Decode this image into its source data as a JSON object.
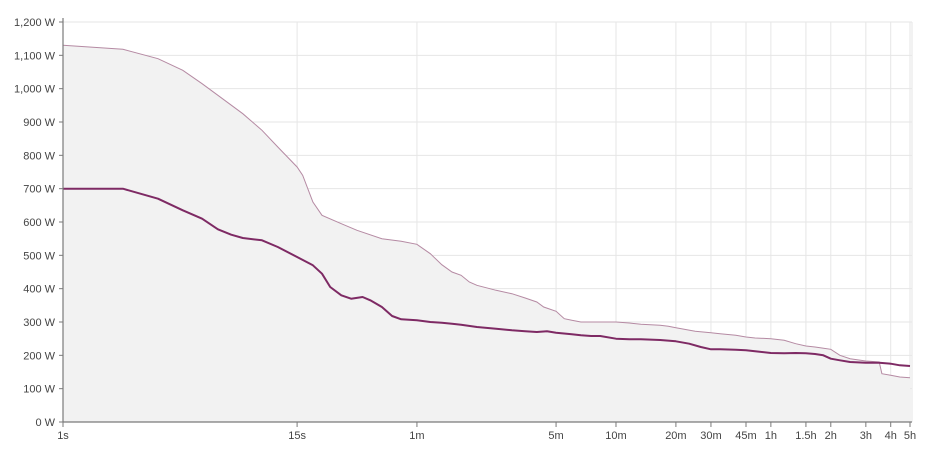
{
  "chart_data": {
    "type": "line",
    "title": "",
    "xlabel": "",
    "ylabel": "",
    "x_scale": "log",
    "x_unit": "seconds",
    "xlim": [
      1,
      18000
    ],
    "ylim": [
      0,
      1200
    ],
    "grid": true,
    "y_ticks": [
      {
        "value": 0,
        "label": "0 W"
      },
      {
        "value": 100,
        "label": "100 W"
      },
      {
        "value": 200,
        "label": "200 W"
      },
      {
        "value": 300,
        "label": "300 W"
      },
      {
        "value": 400,
        "label": "400 W"
      },
      {
        "value": 500,
        "label": "500 W"
      },
      {
        "value": 600,
        "label": "600 W"
      },
      {
        "value": 700,
        "label": "700 W"
      },
      {
        "value": 800,
        "label": "800 W"
      },
      {
        "value": 900,
        "label": "900 W"
      },
      {
        "value": 1000,
        "label": "1,000 W"
      },
      {
        "value": 1100,
        "label": "1,100 W"
      },
      {
        "value": 1200,
        "label": "1,200 W"
      }
    ],
    "x_ticks": [
      {
        "value": 1,
        "label": "1s"
      },
      {
        "value": 15,
        "label": "15s"
      },
      {
        "value": 60,
        "label": "1m"
      },
      {
        "value": 300,
        "label": "5m"
      },
      {
        "value": 600,
        "label": "10m"
      },
      {
        "value": 1200,
        "label": "20m"
      },
      {
        "value": 1800,
        "label": "30m"
      },
      {
        "value": 2700,
        "label": "45m"
      },
      {
        "value": 3600,
        "label": "1h"
      },
      {
        "value": 5400,
        "label": "1.5h"
      },
      {
        "value": 7200,
        "label": "2h"
      },
      {
        "value": 10800,
        "label": "3h"
      },
      {
        "value": 14400,
        "label": "4h"
      },
      {
        "value": 18000,
        "label": "5h"
      }
    ],
    "series": [
      {
        "role": "envelope",
        "color": "#b58aa3",
        "fill": "#f2f2f2",
        "points": [
          [
            1,
            1130
          ],
          [
            2,
            1118
          ],
          [
            3,
            1090
          ],
          [
            4,
            1055
          ],
          [
            5,
            1015
          ],
          [
            6,
            980
          ],
          [
            8,
            925
          ],
          [
            10,
            875
          ],
          [
            12,
            825
          ],
          [
            15,
            765
          ],
          [
            16,
            740
          ],
          [
            18,
            660
          ],
          [
            20,
            620
          ],
          [
            25,
            595
          ],
          [
            30,
            575
          ],
          [
            40,
            550
          ],
          [
            50,
            542
          ],
          [
            60,
            533
          ],
          [
            70,
            505
          ],
          [
            80,
            472
          ],
          [
            90,
            450
          ],
          [
            100,
            440
          ],
          [
            110,
            420
          ],
          [
            120,
            410
          ],
          [
            150,
            395
          ],
          [
            180,
            385
          ],
          [
            210,
            372
          ],
          [
            240,
            360
          ],
          [
            260,
            345
          ],
          [
            300,
            332
          ],
          [
            330,
            310
          ],
          [
            360,
            305
          ],
          [
            400,
            300
          ],
          [
            450,
            300
          ],
          [
            500,
            300
          ],
          [
            600,
            300
          ],
          [
            700,
            297
          ],
          [
            800,
            293
          ],
          [
            1000,
            290
          ],
          [
            1100,
            287
          ],
          [
            1200,
            283
          ],
          [
            1500,
            272
          ],
          [
            1800,
            268
          ],
          [
            2000,
            265
          ],
          [
            2400,
            260
          ],
          [
            2700,
            255
          ],
          [
            3000,
            252
          ],
          [
            3600,
            250
          ],
          [
            4200,
            245
          ],
          [
            4800,
            235
          ],
          [
            5400,
            228
          ],
          [
            6000,
            225
          ],
          [
            6500,
            222
          ],
          [
            7200,
            218
          ],
          [
            8000,
            200
          ],
          [
            9000,
            190
          ],
          [
            10800,
            183
          ],
          [
            12600,
            180
          ],
          [
            13000,
            145
          ],
          [
            14400,
            140
          ],
          [
            16000,
            135
          ],
          [
            18000,
            133
          ]
        ]
      },
      {
        "role": "curve",
        "color": "#7e2a64",
        "points": [
          [
            1,
            700
          ],
          [
            1.5,
            700
          ],
          [
            2,
            700
          ],
          [
            3,
            670
          ],
          [
            4,
            635
          ],
          [
            5,
            610
          ],
          [
            6,
            578
          ],
          [
            7,
            562
          ],
          [
            8,
            552
          ],
          [
            10,
            545
          ],
          [
            12,
            525
          ],
          [
            15,
            495
          ],
          [
            18,
            470
          ],
          [
            20,
            445
          ],
          [
            22,
            405
          ],
          [
            25,
            380
          ],
          [
            28,
            370
          ],
          [
            32,
            375
          ],
          [
            35,
            365
          ],
          [
            40,
            345
          ],
          [
            45,
            318
          ],
          [
            50,
            308
          ],
          [
            60,
            305
          ],
          [
            70,
            300
          ],
          [
            80,
            298
          ],
          [
            90,
            295
          ],
          [
            100,
            292
          ],
          [
            120,
            285
          ],
          [
            150,
            280
          ],
          [
            180,
            275
          ],
          [
            210,
            272
          ],
          [
            240,
            270
          ],
          [
            270,
            272
          ],
          [
            300,
            268
          ],
          [
            360,
            263
          ],
          [
            400,
            260
          ],
          [
            450,
            258
          ],
          [
            500,
            258
          ],
          [
            600,
            250
          ],
          [
            700,
            248
          ],
          [
            800,
            248
          ],
          [
            1000,
            246
          ],
          [
            1200,
            242
          ],
          [
            1400,
            235
          ],
          [
            1600,
            225
          ],
          [
            1800,
            218
          ],
          [
            2000,
            218
          ],
          [
            2400,
            217
          ],
          [
            2700,
            215
          ],
          [
            3000,
            212
          ],
          [
            3600,
            207
          ],
          [
            4200,
            206
          ],
          [
            4800,
            207
          ],
          [
            5400,
            206
          ],
          [
            6000,
            204
          ],
          [
            6600,
            200
          ],
          [
            7200,
            190
          ],
          [
            8000,
            185
          ],
          [
            9000,
            180
          ],
          [
            10800,
            178
          ],
          [
            12600,
            178
          ],
          [
            14400,
            175
          ],
          [
            16000,
            170
          ],
          [
            18000,
            168
          ]
        ]
      }
    ]
  }
}
